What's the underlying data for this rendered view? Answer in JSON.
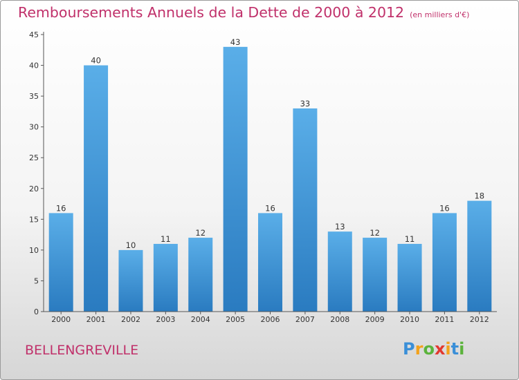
{
  "chart_data": {
    "type": "bar",
    "title": "Remboursements Annuels de la Dette de 2000 à 2012",
    "subtitle": "(en milliers d'€)",
    "categories": [
      "2000",
      "2001",
      "2002",
      "2003",
      "2004",
      "2005",
      "2006",
      "2007",
      "2008",
      "2009",
      "2010",
      "2011",
      "2012"
    ],
    "values": [
      16,
      40,
      10,
      11,
      12,
      43,
      16,
      33,
      13,
      12,
      11,
      16,
      18
    ],
    "ylim": [
      0,
      45
    ],
    "yticks": [
      0,
      5,
      10,
      15,
      20,
      25,
      30,
      35,
      40,
      45
    ],
    "xlabel": "",
    "ylabel": "",
    "bar_color_top": "#5aaee8",
    "bar_color_bottom": "#2a7bc0"
  },
  "location": "BELLENGREVILLE",
  "logo": {
    "letters": [
      "P",
      "r",
      "o",
      "x",
      "i",
      "t",
      "i"
    ],
    "colors": [
      "#3a8fd8",
      "#f3a21b",
      "#5bb33c",
      "#e2392f",
      "#f3a21b",
      "#3a8fd8",
      "#5bb33c"
    ]
  },
  "colors": {
    "accent": "#c0306a"
  }
}
